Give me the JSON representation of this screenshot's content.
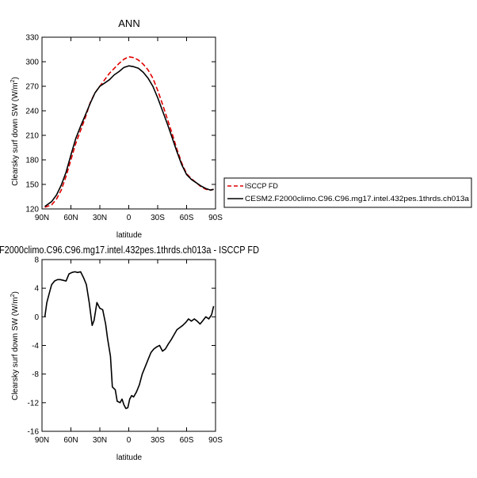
{
  "chart_data": [
    {
      "type": "line",
      "title": "ANN",
      "xlabel": "latitude",
      "ylabel": "Clearsky surf down SW (W/m²)",
      "xlim": [
        90,
        -90
      ],
      "ylim": [
        120,
        330
      ],
      "x_ticks": [
        90,
        60,
        30,
        0,
        -30,
        -60,
        -90
      ],
      "x_tick_labels": [
        "90N",
        "60N",
        "30N",
        "0",
        "30S",
        "60S",
        "90S"
      ],
      "y_ticks": [
        120,
        150,
        180,
        210,
        240,
        270,
        300,
        330
      ],
      "y_tick_labels": [
        "120",
        "150",
        "180",
        "210",
        "240",
        "270",
        "300",
        "330"
      ],
      "legend_placement": "right",
      "series": [
        {
          "name": "ISCCP FD",
          "color": "#e00000",
          "dash": "dashed",
          "x": [
            87,
            80,
            75,
            70,
            65,
            60,
            55,
            50,
            45,
            40,
            35,
            30,
            25,
            20,
            15,
            10,
            5,
            0,
            -5,
            -10,
            -15,
            -20,
            -25,
            -30,
            -35,
            -40,
            -45,
            -50,
            -55,
            -60,
            -65,
            -70,
            -75,
            -80,
            -85,
            -88
          ],
          "y": [
            122,
            125,
            132,
            143,
            160,
            180,
            200,
            216,
            232,
            250,
            262,
            270,
            278,
            286,
            292,
            298,
            303,
            306,
            305,
            302,
            297,
            290,
            280,
            265,
            248,
            230,
            212,
            193,
            176,
            163,
            157,
            152,
            147,
            144,
            143,
            144
          ]
        },
        {
          "name": "CESM2.F2000climo.C96.C96.mg17.intel.432pes.1thrds.ch013a",
          "color": "#000000",
          "dash": "solid",
          "x": [
            87,
            80,
            75,
            70,
            65,
            60,
            55,
            50,
            45,
            40,
            35,
            30,
            25,
            20,
            15,
            10,
            5,
            0,
            -5,
            -10,
            -15,
            -20,
            -25,
            -30,
            -35,
            -40,
            -45,
            -50,
            -55,
            -60,
            -65,
            -70,
            -75,
            -80,
            -85,
            -88
          ],
          "y": [
            123,
            129,
            137,
            149,
            165,
            186,
            206,
            221,
            235,
            249,
            262,
            270,
            274,
            278,
            284,
            288,
            293,
            295,
            294,
            292,
            287,
            280,
            270,
            256,
            240,
            224,
            207,
            190,
            174,
            162,
            156,
            152,
            148,
            145,
            143,
            144
          ]
        }
      ]
    },
    {
      "type": "line",
      "title": "F2000climo.C96.C96.mg17.intel.432pes.1thrds.ch013a - ISCCP FD",
      "xlabel": "latitude",
      "ylabel": "Clearsky surf down SW (W/m²)",
      "xlim": [
        90,
        -90
      ],
      "ylim": [
        -16,
        8
      ],
      "x_ticks": [
        90,
        60,
        30,
        0,
        -30,
        -60,
        -90
      ],
      "x_tick_labels": [
        "90N",
        "60N",
        "30N",
        "0",
        "30S",
        "60S",
        "90S"
      ],
      "y_ticks": [
        -16,
        -12,
        -8,
        -4,
        0,
        4,
        8
      ],
      "y_tick_labels": [
        "-16",
        "-12",
        "-8",
        "-4",
        "0",
        "4",
        "8"
      ],
      "series": [
        {
          "color": "#000000",
          "dash": "solid",
          "x": [
            87,
            85,
            82,
            80,
            77,
            74,
            71,
            68,
            65,
            62,
            59,
            56,
            53,
            50,
            47,
            44,
            41,
            38,
            36,
            33,
            30,
            27,
            24,
            22,
            19,
            17,
            14,
            12,
            9,
            7,
            5,
            3,
            1,
            -1,
            -3,
            -5,
            -8,
            -11,
            -14,
            -17,
            -20,
            -23,
            -26,
            -29,
            -32,
            -35,
            -38,
            -41,
            -44,
            -47,
            -50,
            -53,
            -56,
            -59,
            -62,
            -65,
            -68,
            -71,
            -74,
            -77,
            -80,
            -83,
            -86,
            -88
          ],
          "y": [
            0,
            2,
            3.5,
            4.5,
            5.0,
            5.2,
            5.2,
            5.1,
            5.0,
            6.0,
            6.2,
            6.3,
            6.2,
            6.3,
            5.5,
            4.5,
            2.0,
            -1.2,
            -0.5,
            2.0,
            1.2,
            1.0,
            -1.0,
            -3.0,
            -5.5,
            -9.8,
            -10.2,
            -11.8,
            -12.0,
            -11.5,
            -12.3,
            -12.8,
            -12.7,
            -11.5,
            -11.0,
            -11.2,
            -10.5,
            -9.5,
            -8.0,
            -7.0,
            -6.0,
            -5.0,
            -4.5,
            -4.2,
            -4.0,
            -4.8,
            -4.5,
            -3.8,
            -3.2,
            -2.5,
            -1.8,
            -1.5,
            -1.2,
            -0.8,
            -0.3,
            -0.6,
            -0.3,
            -0.6,
            -1.0,
            -0.5,
            0.0,
            -0.3,
            0.3,
            1.5
          ]
        }
      ]
    }
  ]
}
